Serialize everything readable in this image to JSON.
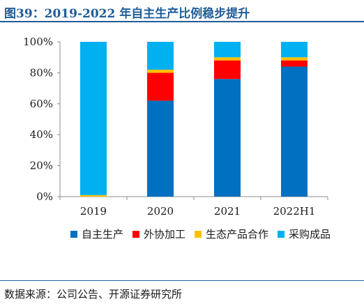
{
  "header": {
    "title": "图39：2019-2022 年自主生产比例稳步提升"
  },
  "footer": {
    "source": "数据来源：公司公告、开源证券研究所"
  },
  "chart_data": {
    "type": "bar",
    "stacked": true,
    "categories": [
      "2019",
      "2020",
      "2021",
      "2022H1"
    ],
    "series": [
      {
        "name": "自主生产",
        "color": "#0070c0",
        "values": [
          0,
          62,
          76,
          84
        ]
      },
      {
        "name": "外协加工",
        "color": "#ff0000",
        "values": [
          0,
          18,
          12,
          4
        ]
      },
      {
        "name": "生态产品合作",
        "color": "#ffc000",
        "values": [
          1,
          2,
          2,
          2
        ]
      },
      {
        "name": "采购成品",
        "color": "#00b0f0",
        "values": [
          99,
          18,
          10,
          10
        ]
      }
    ],
    "yticks": [
      "0%",
      "20%",
      "40%",
      "60%",
      "80%",
      "100%"
    ],
    "ylim": [
      0,
      100
    ],
    "grid": false,
    "legend_position": "bottom"
  }
}
